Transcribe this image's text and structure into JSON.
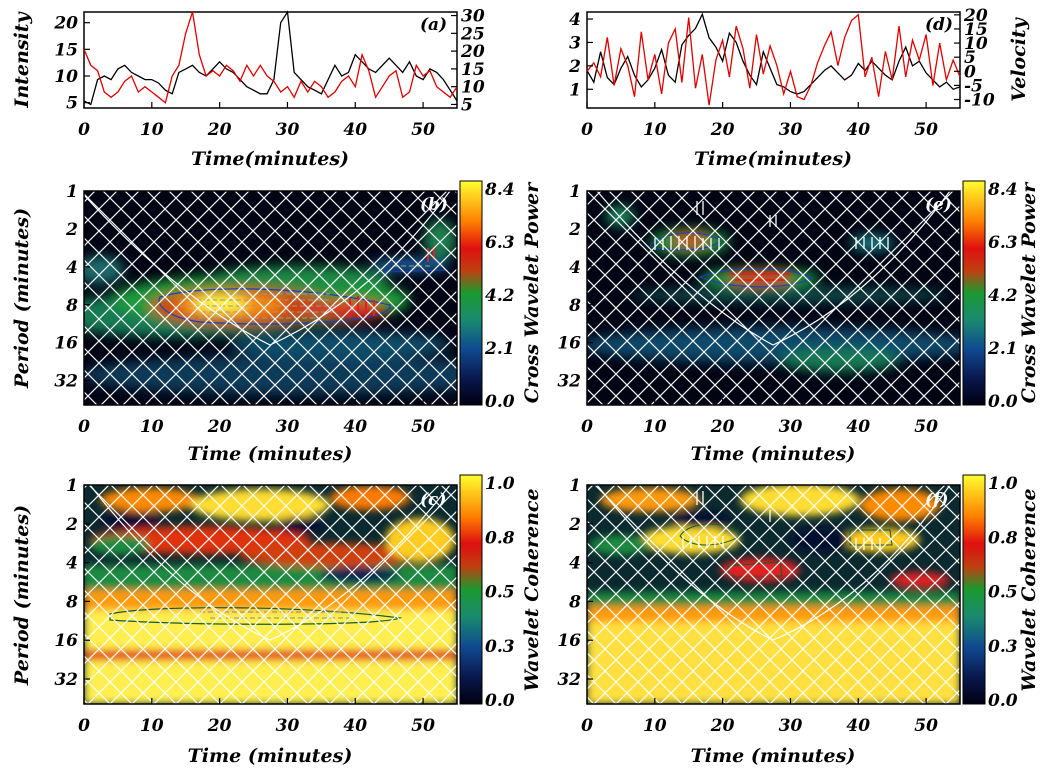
{
  "chart_data": [
    {
      "id": "a",
      "type": "line",
      "panel_label": "(a)",
      "xlabel": "Time(minutes)",
      "ylabel": "Intensity",
      "xlim": [
        0,
        55
      ],
      "ylim": [
        4,
        22
      ],
      "ylim_right": [
        4,
        31
      ],
      "xticks": [
        0,
        10,
        20,
        30,
        40,
        50
      ],
      "yticks": [
        5,
        10,
        15,
        20
      ],
      "yticks_right": [
        5,
        10,
        15,
        20,
        25,
        30
      ],
      "series": [
        {
          "color": "#000000",
          "axis": "right",
          "x": [
            0,
            1,
            2,
            3,
            4,
            5,
            6,
            7,
            8,
            9,
            10,
            11,
            12,
            13,
            14,
            15,
            16,
            17,
            18,
            19,
            20,
            21,
            22,
            23,
            24,
            25,
            26,
            27,
            28,
            29,
            30,
            31,
            32,
            33,
            34,
            35,
            36,
            37,
            38,
            39,
            40,
            41,
            42,
            43,
            44,
            45,
            46,
            47,
            48,
            49,
            50,
            51,
            52,
            53,
            54,
            55
          ],
          "values": [
            6,
            5,
            12,
            13,
            12,
            15,
            16,
            14,
            13,
            12,
            12,
            11,
            9,
            8,
            14,
            15,
            16,
            14,
            13,
            15,
            17,
            15,
            14,
            12,
            10,
            9,
            8,
            8,
            12,
            28,
            31,
            14,
            12,
            10,
            9,
            8,
            12,
            16,
            13,
            14,
            19,
            17,
            15,
            14,
            16,
            18,
            16,
            14,
            17,
            13,
            12,
            15,
            14,
            12,
            9,
            6
          ]
        },
        {
          "color": "#e00000",
          "axis": "left",
          "x": [
            0,
            1,
            2,
            3,
            4,
            5,
            6,
            7,
            8,
            9,
            10,
            11,
            12,
            13,
            14,
            15,
            16,
            17,
            18,
            19,
            20,
            21,
            22,
            23,
            24,
            25,
            26,
            27,
            28,
            29,
            30,
            31,
            32,
            33,
            34,
            35,
            36,
            37,
            38,
            39,
            40,
            41,
            42,
            43,
            44,
            45,
            46,
            47,
            48,
            49,
            50,
            51,
            52,
            53,
            54,
            55
          ],
          "values": [
            15,
            12,
            11,
            7,
            6,
            7,
            9,
            10,
            7,
            8,
            7,
            6,
            5,
            10,
            12,
            18,
            22,
            14,
            10,
            11,
            10,
            12,
            11,
            9,
            12,
            10,
            12,
            10,
            9,
            7,
            8,
            6,
            9,
            7,
            9,
            8,
            6,
            7,
            9,
            10,
            8,
            14,
            11,
            6,
            8,
            10,
            11,
            6,
            7,
            12,
            10,
            11,
            8,
            7,
            6,
            8
          ]
        }
      ]
    },
    {
      "id": "d",
      "type": "line",
      "panel_label": "(d)",
      "xlabel": "Time(minutes)",
      "ylabel": "Velocity",
      "xlim": [
        0,
        55
      ],
      "ylim": [
        0.2,
        4.3
      ],
      "ylim_right": [
        -13,
        21
      ],
      "xticks": [
        0,
        10,
        20,
        30,
        40,
        50
      ],
      "yticks": [
        1,
        2,
        3,
        4
      ],
      "yticks_right": [
        -10,
        -5,
        0,
        5,
        10,
        15,
        20
      ],
      "yticklabels_right": [
        "-10",
        "-5",
        "0",
        "5",
        "10",
        "15",
        "20"
      ],
      "series": [
        {
          "color": "#000000",
          "axis": "left",
          "x": [
            0,
            1,
            2,
            3,
            4,
            5,
            6,
            7,
            8,
            9,
            10,
            11,
            12,
            13,
            14,
            15,
            16,
            17,
            18,
            19,
            20,
            21,
            22,
            23,
            24,
            25,
            26,
            27,
            28,
            29,
            30,
            31,
            32,
            33,
            34,
            35,
            36,
            37,
            38,
            39,
            40,
            41,
            42,
            43,
            44,
            45,
            46,
            47,
            48,
            49,
            50,
            51,
            52,
            53,
            54,
            55
          ],
          "values": [
            1.8,
            1.3,
            2.6,
            1.5,
            1.2,
            1.9,
            2.4,
            1.6,
            1.1,
            1.4,
            1.9,
            2.7,
            1.6,
            1.3,
            2.9,
            3.3,
            3.6,
            4.2,
            3.2,
            2.8,
            2.2,
            3.4,
            3.0,
            2.2,
            1.6,
            1.2,
            2.6,
            1.9,
            1.2,
            1.1,
            0.9,
            0.8,
            0.9,
            1.2,
            1.5,
            1.8,
            2.0,
            1.7,
            1.4,
            1.6,
            2.1,
            1.8,
            2.2,
            1.9,
            1.6,
            1.4,
            2.2,
            2.8,
            2.0,
            2.2,
            1.7,
            1.4,
            1.1,
            1.3,
            1.0,
            1.1
          ]
        },
        {
          "color": "#e00000",
          "axis": "right",
          "x": [
            0,
            1,
            2,
            3,
            4,
            5,
            6,
            7,
            8,
            9,
            10,
            11,
            12,
            13,
            14,
            15,
            16,
            17,
            18,
            19,
            20,
            21,
            22,
            23,
            24,
            25,
            26,
            27,
            28,
            29,
            30,
            31,
            32,
            33,
            34,
            35,
            36,
            37,
            38,
            39,
            40,
            41,
            42,
            43,
            44,
            45,
            46,
            47,
            48,
            49,
            50,
            51,
            52,
            53,
            54,
            55
          ],
          "values": [
            0,
            3,
            -2,
            12,
            -5,
            8,
            2,
            -9,
            14,
            -3,
            6,
            -8,
            10,
            15,
            -4,
            19,
            -6,
            6,
            -12,
            4,
            11,
            -2,
            16,
            8,
            -6,
            13,
            -1,
            9,
            2,
            -8,
            0,
            -9,
            -10,
            -5,
            3,
            9,
            14,
            2,
            12,
            18,
            20,
            -2,
            5,
            -9,
            7,
            -3,
            16,
            -2,
            11,
            4,
            13,
            -5,
            10,
            -3,
            4,
            -2
          ]
        }
      ]
    },
    {
      "id": "b",
      "type": "heatmap",
      "panel_label": "(b)",
      "xlabel": "Time (minutes)",
      "ylabel": "Period (minutes)",
      "colorbar_label": "Cross Wavelet Power",
      "xlim": [
        0,
        55
      ],
      "xticks": [
        0,
        10,
        20,
        30,
        40,
        50
      ],
      "yticklabels": [
        "1",
        "2",
        "4",
        "8",
        "16",
        "32"
      ],
      "y_scale": "log2",
      "ylim": [
        1,
        50
      ],
      "colorbar_ticks": [
        "0.0",
        "2.1",
        "4.2",
        "6.3",
        "8.4"
      ],
      "colorbar_range": [
        0,
        8.4
      ]
    },
    {
      "id": "e",
      "type": "heatmap",
      "panel_label": "(e)",
      "xlabel": "Time (minutes)",
      "ylabel": "",
      "colorbar_label": "Cross Wavelet Power",
      "xlim": [
        0,
        55
      ],
      "xticks": [
        0,
        10,
        20,
        30,
        40,
        50
      ],
      "yticklabels": [
        "1",
        "2",
        "4",
        "8",
        "16",
        "32"
      ],
      "y_scale": "log2",
      "ylim": [
        1,
        50
      ],
      "colorbar_ticks": [
        "0.0",
        "2.1",
        "4.2",
        "6.3",
        "8.4"
      ],
      "colorbar_range": [
        0,
        8.4
      ]
    },
    {
      "id": "c",
      "type": "heatmap",
      "panel_label": "(c)",
      "xlabel": "Time (minutes)",
      "ylabel": "Period (minutes)",
      "colorbar_label": "Wavelet Coherence",
      "xlim": [
        0,
        55
      ],
      "xticks": [
        0,
        10,
        20,
        30,
        40,
        50
      ],
      "yticklabels": [
        "1",
        "2",
        "4",
        "8",
        "16",
        "32"
      ],
      "y_scale": "log2",
      "ylim": [
        1,
        50
      ],
      "colorbar_ticks": [
        "0.0",
        "0.3",
        "0.5",
        "0.8",
        "1.0"
      ],
      "colorbar_range": [
        0,
        1
      ]
    },
    {
      "id": "f",
      "type": "heatmap",
      "panel_label": "(f)",
      "xlabel": "Time (minutes)",
      "ylabel": "",
      "colorbar_label": "Wavelet Coherence",
      "xlim": [
        0,
        55
      ],
      "xticks": [
        0,
        10,
        20,
        30,
        40,
        50
      ],
      "yticklabels": [
        "1",
        "2",
        "4",
        "8",
        "16",
        "32"
      ],
      "y_scale": "log2",
      "ylim": [
        1,
        50
      ],
      "colorbar_ticks": [
        "0.0",
        "0.3",
        "0.5",
        "0.8",
        "1.0"
      ],
      "colorbar_range": [
        0,
        1
      ]
    }
  ]
}
